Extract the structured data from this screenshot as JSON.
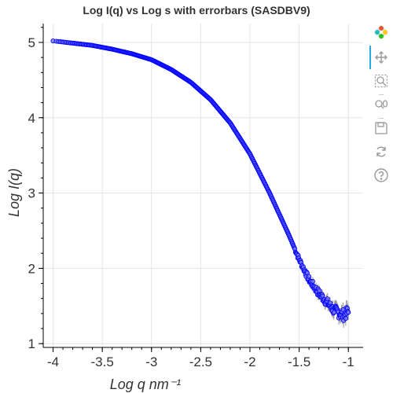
{
  "chart_data": {
    "type": "scatter",
    "title": "Log I(q) vs Log s with errorbars (SASDBV9)",
    "xlabel": "Log q nm⁻¹",
    "ylabel": "Log I(q)",
    "xlim": [
      -4.1,
      -0.85
    ],
    "ylim": [
      0.95,
      5.25
    ],
    "x_ticks": [
      -4,
      -3.5,
      -3,
      -2.5,
      -2,
      -1.5,
      -1
    ],
    "x_tick_labels": [
      "-4",
      "-3.5",
      "-3",
      "-2.5",
      "-2",
      "-1.5",
      "-1"
    ],
    "y_ticks": [
      1,
      2,
      3,
      4,
      5
    ],
    "y_tick_labels": [
      "1",
      "2",
      "3",
      "4",
      "5"
    ],
    "grid": true,
    "series": [
      {
        "name": "SASDBV9",
        "color": "#0000ff",
        "marker_fill": "#7a7af5",
        "has_errorbars": true,
        "curve_x": [
          -4.0,
          -3.8,
          -3.6,
          -3.4,
          -3.2,
          -3.0,
          -2.8,
          -2.6,
          -2.4,
          -2.2,
          -2.0,
          -1.8,
          -1.6,
          -1.5,
          -1.4,
          -1.3,
          -1.25,
          -1.2,
          -1.15,
          -1.1,
          -1.05,
          -1.0
        ],
        "curve_y": [
          5.02,
          4.99,
          4.96,
          4.91,
          4.85,
          4.77,
          4.64,
          4.47,
          4.24,
          3.93,
          3.52,
          3.0,
          2.43,
          2.12,
          1.85,
          1.67,
          1.6,
          1.52,
          1.45,
          1.41,
          1.38,
          1.42
        ]
      }
    ]
  },
  "toolbar": {
    "tools": [
      "bokeh-logo-icon",
      "pan-icon",
      "box-zoom-icon",
      "wheel-zoom-icon",
      "save-icon",
      "reset-icon",
      "help-icon"
    ]
  }
}
